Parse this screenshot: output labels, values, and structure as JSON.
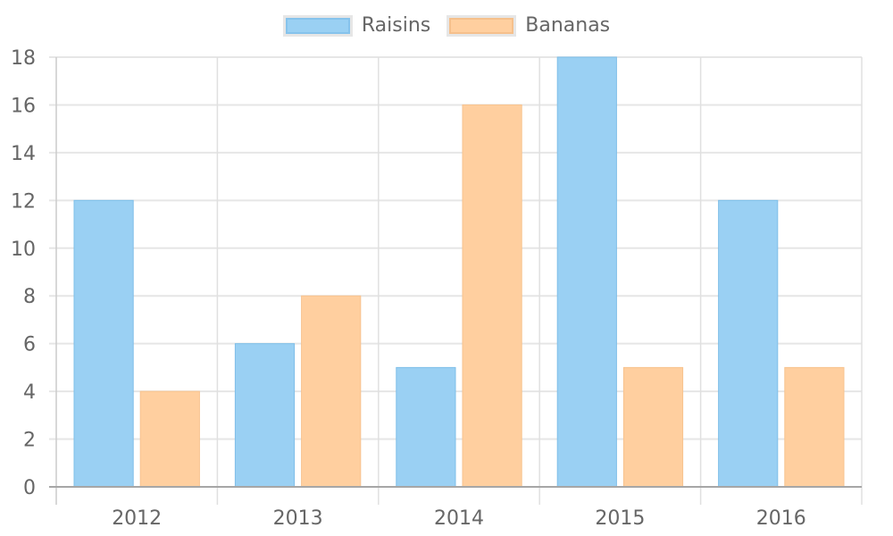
{
  "chart_data": {
    "type": "bar",
    "title": "",
    "xlabel": "",
    "ylabel": "",
    "categories": [
      "2012",
      "2013",
      "2014",
      "2015",
      "2016"
    ],
    "series": [
      {
        "name": "Raisins",
        "values": [
          12,
          6,
          5,
          18,
          12
        ],
        "fill": "#9ad0f3",
        "stroke": "#7fbfe8"
      },
      {
        "name": "Bananas",
        "values": [
          4,
          8,
          16,
          5,
          5
        ],
        "fill": "#ffcf9f",
        "stroke": "#f7c38f"
      }
    ],
    "ylim": [
      0,
      18
    ],
    "yticks": [
      0,
      2,
      4,
      6,
      8,
      10,
      12,
      14,
      16,
      18
    ],
    "grid": true,
    "legend_position": "top"
  },
  "legend": {
    "items": [
      {
        "label": "Raisins"
      },
      {
        "label": "Bananas"
      }
    ]
  }
}
